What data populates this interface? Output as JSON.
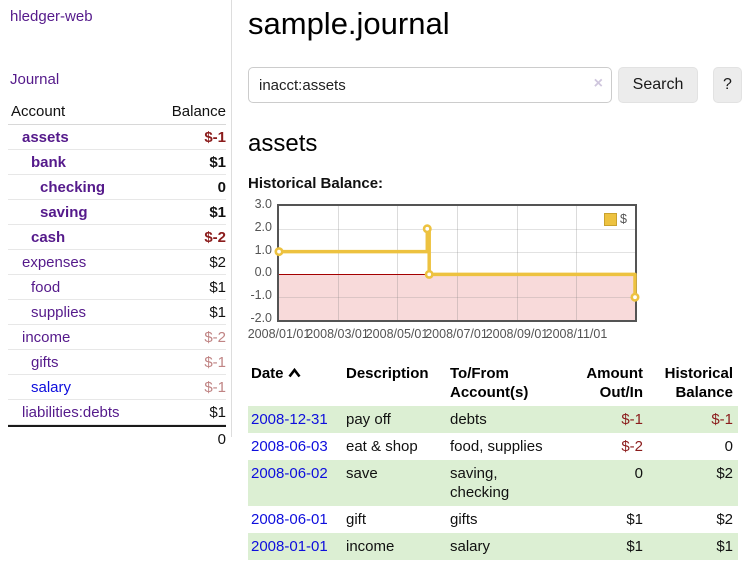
{
  "colors": {
    "link_purple": "#551a8b",
    "link_blue": "#0e0edd",
    "negative_strong": "#8b1c1c",
    "negative_muted": "#c08484",
    "row_stripe_green": "#dcefd3",
    "series_gold": "#edc240",
    "negative_region_pink": "#f8dada",
    "zero_line_red": "#a40000",
    "axis_text": "#545454"
  },
  "sidebar": {
    "brand": "hledger-web",
    "nav": {
      "journal": "Journal"
    },
    "table": {
      "headers": {
        "account": "Account",
        "balance": "Balance"
      },
      "accounts": [
        {
          "name": "assets",
          "indent": 0,
          "bold": true,
          "balance": "$-1",
          "neg": "strong",
          "link": "purple"
        },
        {
          "name": "bank",
          "indent": 1,
          "bold": true,
          "balance": "$1",
          "neg": null,
          "link": "purple"
        },
        {
          "name": "checking",
          "indent": 2,
          "bold": true,
          "balance": "0",
          "neg": null,
          "link": "purple"
        },
        {
          "name": "saving",
          "indent": 2,
          "bold": true,
          "balance": "$1",
          "neg": null,
          "link": "purple"
        },
        {
          "name": "cash",
          "indent": 1,
          "bold": true,
          "balance": "$-2",
          "neg": "strong",
          "link": "purple"
        },
        {
          "name": "expenses",
          "indent": 0,
          "bold": false,
          "balance": "$2",
          "neg": null,
          "link": "purple"
        },
        {
          "name": "food",
          "indent": 1,
          "bold": false,
          "balance": "$1",
          "neg": null,
          "link": "purple"
        },
        {
          "name": "supplies",
          "indent": 1,
          "bold": false,
          "balance": "$1",
          "neg": null,
          "link": "purple"
        },
        {
          "name": "income",
          "indent": 0,
          "bold": false,
          "balance": "$-2",
          "neg": "muted",
          "link": "purple"
        },
        {
          "name": "gifts",
          "indent": 1,
          "bold": false,
          "balance": "$-1",
          "neg": "muted",
          "link": "purple"
        },
        {
          "name": "salary",
          "indent": 1,
          "bold": false,
          "balance": "$-1",
          "neg": "muted",
          "link": "blue"
        },
        {
          "name": "liabilities:debts",
          "indent": 0,
          "bold": false,
          "balance": "$1",
          "neg": null,
          "link": "purple"
        }
      ],
      "total": "0"
    }
  },
  "main": {
    "title": "sample.journal",
    "search": {
      "value": "inacct:assets",
      "clear_icon": "×",
      "button": "Search",
      "help_button": "?"
    },
    "section_title": "assets",
    "chart_label": "Historical Balance:"
  },
  "chart_data": {
    "type": "line",
    "step": true,
    "title": "Historical Balance:",
    "legend": [
      {
        "label": "$",
        "color": "#edc240"
      }
    ],
    "legend_position": "top-right",
    "grid": true,
    "x_start": "2008-01-01",
    "x_end": "2008-12-31",
    "x_ticks": [
      "2008/01/01",
      "2008/03/01",
      "2008/05/01",
      "2008/07/01",
      "2008/09/01",
      "2008/11/01"
    ],
    "y_ticks": [
      3.0,
      2.0,
      1.0,
      0.0,
      -1.0,
      -2.0
    ],
    "ylim": [
      -2.0,
      3.0
    ],
    "series": [
      {
        "name": "$",
        "points": [
          [
            "2008-01-01",
            1
          ],
          [
            "2008-06-01",
            2
          ],
          [
            "2008-06-03",
            0
          ],
          [
            "2008-12-31",
            -1
          ]
        ]
      }
    ],
    "negative_region": true
  },
  "register": {
    "headers": {
      "date": "Date",
      "description": "Description",
      "accounts": "To/From Account(s)",
      "amount": "Amount Out/In",
      "balance": "Historical Balance"
    },
    "rows": [
      {
        "date": "2008-12-31",
        "description": "pay off",
        "accounts": "debts",
        "amount": "$-1",
        "amount_neg": true,
        "balance": "$-1",
        "balance_neg": true,
        "striped": true
      },
      {
        "date": "2008-06-03",
        "description": "eat & shop",
        "accounts": "food, supplies",
        "amount": "$-2",
        "amount_neg": true,
        "balance": "0",
        "balance_neg": false,
        "striped": false
      },
      {
        "date": "2008-06-02",
        "description": "save",
        "accounts": "saving, checking",
        "amount": "0",
        "amount_neg": false,
        "balance": "$2",
        "balance_neg": false,
        "striped": true
      },
      {
        "date": "2008-06-01",
        "description": "gift",
        "accounts": "gifts",
        "amount": "$1",
        "amount_neg": false,
        "balance": "$2",
        "balance_neg": false,
        "striped": false
      },
      {
        "date": "2008-01-01",
        "description": "income",
        "accounts": "salary",
        "amount": "$1",
        "amount_neg": false,
        "balance": "$1",
        "balance_neg": false,
        "striped": true
      }
    ]
  }
}
